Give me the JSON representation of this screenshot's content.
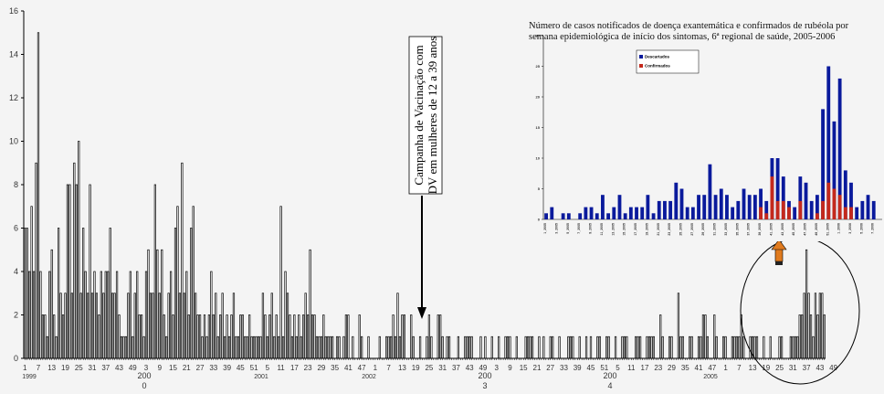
{
  "chart_data": [
    {
      "type": "bar",
      "title": "",
      "xlabel": "",
      "ylabel": "",
      "ylim": [
        0,
        16
      ],
      "y_ticks": [
        "0",
        "2",
        "4",
        "6",
        "8",
        "10",
        "12",
        "14",
        "16"
      ],
      "x_tick_labels": [
        "1",
        "7",
        "13",
        "19",
        "25",
        "31",
        "37",
        "43",
        "49",
        "3",
        "9",
        "15",
        "21",
        "27",
        "33",
        "39",
        "45",
        "51",
        "5",
        "11",
        "17",
        "23",
        "29",
        "35",
        "41",
        "47",
        "1",
        "7",
        "13",
        "19",
        "25",
        "31",
        "37",
        "43",
        "49",
        "3",
        "9",
        "15",
        "21",
        "27",
        "33",
        "39",
        "45",
        "51",
        "5",
        "11",
        "17",
        "23",
        "29",
        "35",
        "41",
        "47",
        "1",
        "7",
        "13",
        "19",
        "25",
        "31",
        "37",
        "43",
        "49"
      ],
      "year_labels": [
        {
          "line1": "1999",
          "line2": ""
        },
        {
          "line1": "200",
          "line2": "0"
        },
        {
          "line1": "2001",
          "line2": ""
        },
        {
          "line1": "2002",
          "line2": ""
        },
        {
          "line1": "200",
          "line2": "3"
        },
        {
          "line1": "200",
          "line2": "4"
        },
        {
          "line1": "2005",
          "line2": ""
        }
      ],
      "values": [
        6,
        6,
        4,
        7,
        4,
        9,
        15,
        4,
        2,
        2,
        1,
        4,
        5,
        2,
        1,
        6,
        3,
        2,
        3,
        8,
        8,
        3,
        9,
        8,
        10,
        3,
        6,
        4,
        3,
        8,
        3,
        4,
        3,
        2,
        4,
        3,
        4,
        4,
        6,
        3,
        3,
        4,
        2,
        1,
        1,
        1,
        3,
        4,
        1,
        3,
        4,
        2,
        2,
        1,
        4,
        5,
        3,
        3,
        8,
        5,
        3,
        5,
        2,
        1,
        3,
        4,
        2,
        6,
        7,
        3,
        9,
        3,
        4,
        2,
        6,
        7,
        3,
        2,
        2,
        1,
        2,
        1,
        2,
        4,
        2,
        3,
        1,
        2,
        3,
        1,
        2,
        1,
        2,
        3,
        1,
        1,
        2,
        2,
        1,
        1,
        2,
        1,
        1,
        1,
        1,
        1,
        3,
        2,
        1,
        2,
        3,
        1,
        2,
        1,
        7,
        1,
        4,
        3,
        2,
        1,
        2,
        1,
        2,
        1,
        2,
        3,
        2,
        5,
        2,
        2,
        1,
        1,
        1,
        2,
        1,
        1,
        1,
        1,
        0,
        1,
        1,
        0,
        1,
        2,
        2,
        0,
        1,
        0,
        0,
        2,
        1,
        0,
        0,
        1,
        0,
        0,
        0,
        0,
        1,
        0,
        0,
        1,
        1,
        1,
        2,
        1,
        3,
        1,
        2,
        2,
        0,
        0,
        2,
        1,
        0,
        0,
        1,
        0,
        0,
        1,
        2,
        1,
        0,
        0,
        2,
        2,
        1,
        0,
        1,
        1,
        0,
        0,
        0,
        1,
        0,
        0,
        1,
        1,
        1,
        1,
        0,
        0,
        0,
        1,
        0,
        1,
        0,
        0,
        1,
        0,
        0,
        1,
        0,
        0,
        1,
        1,
        1,
        0,
        0,
        1,
        0,
        0,
        0,
        1,
        1,
        1,
        1,
        0,
        0,
        1,
        0,
        1,
        0,
        0,
        1,
        1,
        0,
        0,
        1,
        0,
        0,
        0,
        1,
        1,
        1,
        0,
        0,
        1,
        0,
        0,
        1,
        0,
        1,
        0,
        0,
        1,
        1,
        0,
        0,
        1,
        1,
        0,
        0,
        1,
        0,
        0,
        1,
        1,
        1,
        0,
        0,
        0,
        1,
        1,
        1,
        0,
        0,
        1,
        1,
        1,
        1,
        0,
        0,
        2,
        1,
        0,
        0,
        1,
        1,
        0,
        0,
        3,
        1,
        1,
        0,
        0,
        1,
        1,
        0,
        0,
        1,
        1,
        2,
        2,
        1,
        0,
        0,
        2,
        1,
        0,
        0,
        1,
        1,
        0,
        0,
        1,
        1,
        1,
        1,
        2,
        1,
        0,
        0,
        1,
        1,
        1,
        1,
        0,
        0,
        1,
        0,
        0,
        1,
        0,
        0,
        0,
        1,
        1,
        0,
        0,
        0,
        1,
        1,
        1,
        1,
        2,
        2,
        3,
        5,
        3,
        2,
        1,
        3,
        2,
        3,
        3,
        2
      ],
      "annotation_lines": [
        "Campanha de Vacinação com",
        "DV em mulheres de 12 a 39 anos"
      ]
    },
    {
      "type": "bar",
      "title_lines": [
        "Número de casos notificados de doença exantemática e confirmados de rubéola por",
        "semana epidemiológica de início dos sintomas, 6ª regional de saúde, 2005-2006"
      ],
      "ylim": [
        0,
        30
      ],
      "y_ticks": [
        "0",
        "5",
        "10",
        "15",
        "20",
        "25",
        "30"
      ],
      "legend": [
        "Descartados",
        "Confirmados"
      ],
      "legend_position": "top-left",
      "x_tick_labels": [
        "1_2005",
        "3_2005",
        "5_2005",
        "7_2005",
        "9_2005",
        "11_2005",
        "13_2005",
        "15_2005",
        "17_2005",
        "19_2005",
        "21_2005",
        "23_2005",
        "25_2005",
        "27_2005",
        "29_2005",
        "31_2005",
        "33_2005",
        "35_2005",
        "37_2005",
        "39_2005",
        "41_2005",
        "43_2005",
        "45_2005",
        "47_2005",
        "49_2005",
        "51_2005",
        "1_2006",
        "3_2006",
        "5_2006",
        "7_2006"
      ],
      "series": [
        {
          "name": "Descartados",
          "values": [
            1,
            2,
            0,
            1,
            1,
            0,
            1,
            2,
            2,
            1,
            4,
            1,
            2,
            4,
            1,
            2,
            2,
            2,
            4,
            1,
            3,
            3,
            3,
            6,
            5,
            2,
            2,
            4,
            4,
            9,
            4,
            5,
            4,
            2,
            3,
            5,
            4,
            4,
            5,
            3,
            10,
            10,
            7,
            3,
            2,
            7,
            6,
            3,
            4,
            18,
            25,
            16,
            23,
            8,
            6,
            2,
            3,
            4,
            3,
            0
          ]
        },
        {
          "name": "Confirmados",
          "values": [
            0,
            0,
            0,
            0,
            0,
            0,
            0,
            0,
            0,
            0,
            0,
            0,
            0,
            0,
            0,
            0,
            0,
            0,
            0,
            0,
            0,
            0,
            0,
            0,
            0,
            0,
            0,
            0,
            0,
            0,
            0,
            0,
            0,
            0,
            0,
            0,
            0,
            0,
            2,
            1,
            7,
            3,
            3,
            2,
            0,
            3,
            0,
            0,
            1,
            3,
            6,
            5,
            4,
            2,
            2,
            0,
            0,
            0,
            0,
            0
          ]
        }
      ]
    }
  ],
  "colors": {
    "bar_fill": "#ffffff",
    "bar_stroke": "#000000",
    "descartados": "#0a1a9c",
    "confirmados": "#c4291c",
    "arrow": "#e07b1f"
  }
}
